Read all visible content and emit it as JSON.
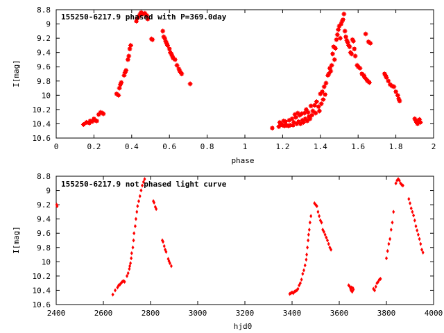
{
  "chart_data": [
    {
      "type": "scatter",
      "title": "155250-6217.9 phased with P=369.0day",
      "xlabel": "phase",
      "ylabel": "I[mag]",
      "xlim": [
        0,
        2
      ],
      "ylim": [
        10.6,
        8.8
      ],
      "y_inverted": true,
      "xticks": [
        0,
        0.2,
        0.4,
        0.6,
        0.8,
        1,
        1.2,
        1.4,
        1.6,
        1.8,
        2
      ],
      "xtick_labels": [
        "0",
        "0.2",
        "0.4",
        "0.6",
        "0.8",
        "1",
        "1.2",
        "1.4",
        "1.6",
        "1.8",
        "2"
      ],
      "yticks": [
        8.8,
        9,
        9.2,
        9.4,
        9.6,
        9.8,
        10,
        10.2,
        10.4,
        10.6
      ],
      "ytick_labels": [
        "8.8",
        "9",
        "9.2",
        "9.4",
        "9.6",
        "9.8",
        "10",
        "10.2",
        "10.4",
        "10.6"
      ],
      "grid": false,
      "marker_color": "#ff0000",
      "points": [
        [
          0.145,
          10.41
        ],
        [
          0.16,
          10.38
        ],
        [
          0.175,
          10.39
        ],
        [
          0.18,
          10.36
        ],
        [
          0.19,
          10.37
        ],
        [
          0.2,
          10.33
        ],
        [
          0.205,
          10.35
        ],
        [
          0.215,
          10.36
        ],
        [
          0.225,
          10.27
        ],
        [
          0.235,
          10.24
        ],
        [
          0.245,
          10.25
        ],
        [
          0.25,
          10.26
        ],
        [
          0.32,
          9.98
        ],
        [
          0.33,
          10.0
        ],
        [
          0.335,
          9.9
        ],
        [
          0.34,
          9.85
        ],
        [
          0.345,
          9.82
        ],
        [
          0.36,
          9.72
        ],
        [
          0.365,
          9.68
        ],
        [
          0.37,
          9.65
        ],
        [
          0.38,
          9.5
        ],
        [
          0.385,
          9.45
        ],
        [
          0.39,
          9.35
        ],
        [
          0.395,
          9.3
        ],
        [
          0.425,
          8.96
        ],
        [
          0.43,
          8.92
        ],
        [
          0.44,
          8.89
        ],
        [
          0.445,
          8.86
        ],
        [
          0.45,
          8.84
        ],
        [
          0.46,
          8.86
        ],
        [
          0.47,
          8.85
        ],
        [
          0.48,
          8.88
        ],
        [
          0.485,
          8.93
        ],
        [
          0.505,
          9.21
        ],
        [
          0.51,
          9.22
        ],
        [
          0.565,
          9.1
        ],
        [
          0.57,
          9.18
        ],
        [
          0.575,
          9.2
        ],
        [
          0.58,
          9.24
        ],
        [
          0.585,
          9.27
        ],
        [
          0.59,
          9.3
        ],
        [
          0.6,
          9.35
        ],
        [
          0.605,
          9.4
        ],
        [
          0.61,
          9.42
        ],
        [
          0.615,
          9.45
        ],
        [
          0.62,
          9.48
        ],
        [
          0.63,
          9.5
        ],
        [
          0.64,
          9.58
        ],
        [
          0.65,
          9.63
        ],
        [
          0.655,
          9.66
        ],
        [
          0.66,
          9.68
        ],
        [
          0.665,
          9.7
        ],
        [
          0.71,
          9.84
        ],
        [
          1.145,
          10.46
        ],
        [
          1.18,
          10.44
        ],
        [
          1.185,
          10.38
        ],
        [
          1.19,
          10.41
        ],
        [
          1.2,
          10.42
        ],
        [
          1.205,
          10.36
        ],
        [
          1.21,
          10.43
        ],
        [
          1.215,
          10.37
        ],
        [
          1.22,
          10.42
        ],
        [
          1.23,
          10.43
        ],
        [
          1.235,
          10.35
        ],
        [
          1.24,
          10.42
        ],
        [
          1.25,
          10.33
        ],
        [
          1.255,
          10.42
        ],
        [
          1.26,
          10.38
        ],
        [
          1.265,
          10.27
        ],
        [
          1.27,
          10.31
        ],
        [
          1.275,
          10.4
        ],
        [
          1.28,
          10.25
        ],
        [
          1.285,
          10.37
        ],
        [
          1.29,
          10.28
        ],
        [
          1.295,
          10.4
        ],
        [
          1.3,
          10.26
        ],
        [
          1.305,
          10.35
        ],
        [
          1.31,
          10.38
        ],
        [
          1.315,
          10.25
        ],
        [
          1.32,
          10.33
        ],
        [
          1.325,
          10.2
        ],
        [
          1.33,
          10.36
        ],
        [
          1.335,
          10.24
        ],
        [
          1.34,
          10.3
        ],
        [
          1.345,
          10.33
        ],
        [
          1.35,
          10.15
        ],
        [
          1.355,
          10.28
        ],
        [
          1.36,
          10.22
        ],
        [
          1.37,
          10.14
        ],
        [
          1.375,
          10.25
        ],
        [
          1.38,
          10.09
        ],
        [
          1.39,
          10.16
        ],
        [
          1.395,
          10.22
        ],
        [
          1.4,
          9.98
        ],
        [
          1.405,
          10.12
        ],
        [
          1.41,
          9.95
        ],
        [
          1.415,
          10.06
        ],
        [
          1.42,
          9.88
        ],
        [
          1.425,
          9.99
        ],
        [
          1.43,
          9.83
        ],
        [
          1.44,
          9.72
        ],
        [
          1.445,
          9.7
        ],
        [
          1.45,
          9.62
        ],
        [
          1.455,
          9.66
        ],
        [
          1.46,
          9.58
        ],
        [
          1.465,
          9.42
        ],
        [
          1.47,
          9.32
        ],
        [
          1.475,
          9.5
        ],
        [
          1.48,
          9.34
        ],
        [
          1.485,
          9.22
        ],
        [
          1.49,
          9.15
        ],
        [
          1.495,
          9.08
        ],
        [
          1.5,
          9.03
        ],
        [
          1.505,
          9.2
        ],
        [
          1.51,
          9.0
        ],
        [
          1.515,
          8.96
        ],
        [
          1.52,
          8.94
        ],
        [
          1.525,
          8.86
        ],
        [
          1.53,
          9.1
        ],
        [
          1.535,
          9.18
        ],
        [
          1.54,
          9.23
        ],
        [
          1.545,
          9.26
        ],
        [
          1.55,
          9.3
        ],
        [
          1.555,
          9.32
        ],
        [
          1.56,
          9.4
        ],
        [
          1.565,
          9.42
        ],
        [
          1.57,
          9.22
        ],
        [
          1.575,
          9.24
        ],
        [
          1.58,
          9.35
        ],
        [
          1.585,
          9.45
        ],
        [
          1.595,
          9.58
        ],
        [
          1.6,
          9.6
        ],
        [
          1.61,
          9.62
        ],
        [
          1.62,
          9.7
        ],
        [
          1.63,
          9.72
        ],
        [
          1.635,
          9.75
        ],
        [
          1.64,
          9.14
        ],
        [
          1.645,
          9.78
        ],
        [
          1.65,
          9.8
        ],
        [
          1.655,
          9.25
        ],
        [
          1.66,
          9.82
        ],
        [
          1.665,
          9.27
        ],
        [
          1.74,
          9.7
        ],
        [
          1.745,
          9.72
        ],
        [
          1.75,
          9.75
        ],
        [
          1.76,
          9.8
        ],
        [
          1.77,
          9.85
        ],
        [
          1.78,
          9.87
        ],
        [
          1.79,
          9.88
        ],
        [
          1.8,
          9.95
        ],
        [
          1.81,
          10.0
        ],
        [
          1.815,
          10.05
        ],
        [
          1.82,
          10.08
        ],
        [
          1.9,
          10.33
        ],
        [
          1.905,
          10.35
        ],
        [
          1.91,
          10.38
        ],
        [
          1.915,
          10.4
        ],
        [
          1.92,
          10.36
        ],
        [
          1.925,
          10.34
        ],
        [
          1.93,
          10.38
        ]
      ]
    },
    {
      "type": "scatter",
      "title": "155250-6217.9 not phased light curve",
      "xlabel": "hjd0",
      "ylabel": "I[mag]",
      "xlim": [
        2400,
        4000
      ],
      "ylim": [
        10.6,
        8.8
      ],
      "y_inverted": true,
      "xticks": [
        2400,
        2600,
        2800,
        3000,
        3200,
        3400,
        3600,
        3800,
        4000
      ],
      "xtick_labels": [
        "2400",
        "2600",
        "2800",
        "3000",
        "3200",
        "3400",
        "3600",
        "3800",
        "4000"
      ],
      "yticks": [
        8.8,
        9,
        9.2,
        9.4,
        9.6,
        9.8,
        10,
        10.2,
        10.4,
        10.6
      ],
      "ytick_labels": [
        "8.8",
        "9",
        "9.2",
        "9.4",
        "9.6",
        "9.8",
        "10",
        "10.2",
        "10.4",
        "10.6"
      ],
      "grid": false,
      "marker_color": "#ff0000",
      "points": [
        [
          2402,
          9.2
        ],
        [
          2404,
          9.22
        ],
        [
          2640,
          10.46
        ],
        [
          2650,
          10.4
        ],
        [
          2660,
          10.36
        ],
        [
          2665,
          10.33
        ],
        [
          2670,
          10.32
        ],
        [
          2675,
          10.3
        ],
        [
          2680,
          10.28
        ],
        [
          2685,
          10.27
        ],
        [
          2690,
          10.28
        ],
        [
          2700,
          10.2
        ],
        [
          2705,
          10.16
        ],
        [
          2710,
          10.1
        ],
        [
          2712,
          10.06
        ],
        [
          2715,
          10.02
        ],
        [
          2718,
          9.95
        ],
        [
          2720,
          9.88
        ],
        [
          2725,
          9.8
        ],
        [
          2728,
          9.7
        ],
        [
          2730,
          9.6
        ],
        [
          2735,
          9.5
        ],
        [
          2738,
          9.4
        ],
        [
          2742,
          9.3
        ],
        [
          2745,
          9.22
        ],
        [
          2750,
          9.15
        ],
        [
          2755,
          9.08
        ],
        [
          2760,
          9.0
        ],
        [
          2765,
          8.93
        ],
        [
          2770,
          8.88
        ],
        [
          2775,
          8.84
        ],
        [
          2812,
          9.15
        ],
        [
          2815,
          9.17
        ],
        [
          2820,
          9.23
        ],
        [
          2824,
          9.26
        ],
        [
          2850,
          9.7
        ],
        [
          2853,
          9.72
        ],
        [
          2858,
          9.78
        ],
        [
          2862,
          9.83
        ],
        [
          2866,
          9.86
        ],
        [
          2875,
          9.96
        ],
        [
          2878,
          9.99
        ],
        [
          2882,
          10.02
        ],
        [
          2888,
          10.06
        ],
        [
          3390,
          10.45
        ],
        [
          3395,
          10.44
        ],
        [
          3400,
          10.43
        ],
        [
          3405,
          10.44
        ],
        [
          3410,
          10.42
        ],
        [
          3415,
          10.41
        ],
        [
          3420,
          10.4
        ],
        [
          3425,
          10.38
        ],
        [
          3430,
          10.33
        ],
        [
          3435,
          10.3
        ],
        [
          3440,
          10.25
        ],
        [
          3445,
          10.17
        ],
        [
          3450,
          10.12
        ],
        [
          3455,
          10.05
        ],
        [
          3460,
          9.97
        ],
        [
          3462,
          9.9
        ],
        [
          3465,
          9.8
        ],
        [
          3468,
          9.7
        ],
        [
          3470,
          9.62
        ],
        [
          3473,
          9.55
        ],
        [
          3476,
          9.45
        ],
        [
          3480,
          9.36
        ],
        [
          3495,
          9.18
        ],
        [
          3500,
          9.2
        ],
        [
          3505,
          9.22
        ],
        [
          3510,
          9.3
        ],
        [
          3515,
          9.36
        ],
        [
          3520,
          9.42
        ],
        [
          3525,
          9.45
        ],
        [
          3530,
          9.55
        ],
        [
          3535,
          9.58
        ],
        [
          3540,
          9.62
        ],
        [
          3545,
          9.66
        ],
        [
          3550,
          9.7
        ],
        [
          3555,
          9.75
        ],
        [
          3560,
          9.8
        ],
        [
          3565,
          9.83
        ],
        [
          3640,
          10.33
        ],
        [
          3645,
          10.35
        ],
        [
          3648,
          10.38
        ],
        [
          3650,
          10.4
        ],
        [
          3652,
          10.36
        ],
        [
          3655,
          10.42
        ],
        [
          3658,
          10.37
        ],
        [
          3660,
          10.39
        ],
        [
          3745,
          10.38
        ],
        [
          3750,
          10.4
        ],
        [
          3755,
          10.35
        ],
        [
          3760,
          10.3
        ],
        [
          3765,
          10.28
        ],
        [
          3770,
          10.25
        ],
        [
          3775,
          10.24
        ],
        [
          3800,
          9.95
        ],
        [
          3805,
          9.85
        ],
        [
          3810,
          9.75
        ],
        [
          3815,
          9.68
        ],
        [
          3820,
          9.55
        ],
        [
          3825,
          9.45
        ],
        [
          3830,
          9.3
        ],
        [
          3840,
          8.9
        ],
        [
          3845,
          8.86
        ],
        [
          3850,
          8.84
        ],
        [
          3855,
          8.86
        ],
        [
          3860,
          8.9
        ],
        [
          3865,
          8.92
        ],
        [
          3870,
          8.93
        ],
        [
          3895,
          9.12
        ],
        [
          3900,
          9.18
        ],
        [
          3905,
          9.25
        ],
        [
          3910,
          9.3
        ],
        [
          3915,
          9.35
        ],
        [
          3920,
          9.42
        ],
        [
          3925,
          9.5
        ],
        [
          3930,
          9.56
        ],
        [
          3935,
          9.62
        ],
        [
          3940,
          9.68
        ],
        [
          3945,
          9.75
        ],
        [
          3950,
          9.83
        ],
        [
          3955,
          9.87
        ]
      ]
    }
  ]
}
